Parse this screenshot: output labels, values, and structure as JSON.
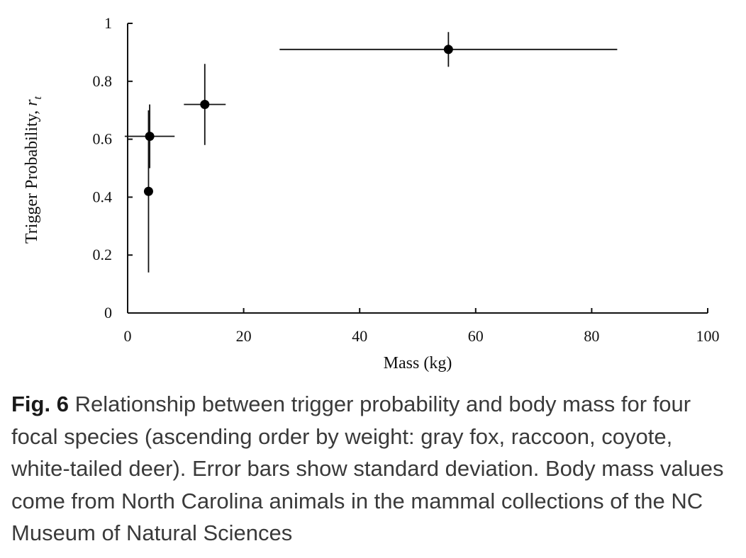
{
  "chart_data": {
    "type": "scatter",
    "xlabel": "Mass (kg)",
    "ylabel_main": "Trigger  Probability, ",
    "ylabel_symbol": "r",
    "ylabel_subscript": "t",
    "xlim": [
      0,
      100
    ],
    "ylim": [
      0,
      1
    ],
    "x_ticks": [
      0,
      20,
      40,
      60,
      80,
      100
    ],
    "y_ticks": [
      0,
      0.2,
      0.4,
      0.6,
      0.8,
      1
    ],
    "y_tick_labels": [
      "0",
      "0.2",
      "0.4",
      "0.6",
      "0.8",
      "1"
    ],
    "grid": false,
    "points": [
      {
        "x": 3.6,
        "y": 0.42,
        "x_err": 0.2,
        "y_err": 0.28
      },
      {
        "x": 3.8,
        "y": 0.61,
        "x_err": 4.3,
        "y_err": 0.11
      },
      {
        "x": 13.3,
        "y": 0.72,
        "x_err": 3.6,
        "y_err": 0.14
      },
      {
        "x": 55.3,
        "y": 0.91,
        "x_err": 29.1,
        "y_err": 0.06
      }
    ],
    "marker_color": "#000000"
  },
  "caption": {
    "label": "Fig. 6",
    "text": " Relationship between trigger probability and body mass for four focal species (ascending order by weight: gray fox, raccoon, coyote, white-tailed deer). Error bars show standard deviation. Body mass values come from North Carolina animals in the mammal collections of the NC Museum of Natural Sciences"
  }
}
